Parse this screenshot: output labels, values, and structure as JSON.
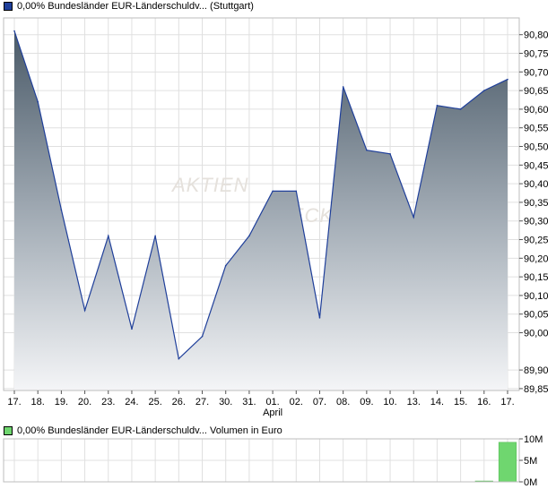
{
  "legend": {
    "price_label": "0,00% Bundesländer EUR-Länderschuldv... (Stuttgart)",
    "volume_label": "0,00% Bundesländer EUR-Länderschuldv... Volumen in Euro",
    "price_color": "#1f3f9a",
    "volume_color": "#6fd66f"
  },
  "watermark": {
    "line1": "AKTIEN",
    "line2": "CHECK"
  },
  "chart_data": [
    {
      "type": "area",
      "series": [
        {
          "name": "0,00% Bundesländer EUR-Länderschuldv... (Stuttgart)",
          "values": [
            90.81,
            90.62,
            90.33,
            90.06,
            90.26,
            90.01,
            90.26,
            89.93,
            89.99,
            90.18,
            90.26,
            90.38,
            90.38,
            90.04,
            90.66,
            90.49,
            90.48,
            90.31,
            90.61,
            90.6,
            90.65,
            90.68
          ]
        }
      ],
      "x_ticks": [
        "17.",
        "18.",
        "19.",
        "20.",
        "23.",
        "24.",
        "25.",
        "26.",
        "27.",
        "30.",
        "31.",
        "01.",
        "02.",
        "07.",
        "08.",
        "09.",
        "10.",
        "13.",
        "14.",
        "15.",
        "16.",
        "17."
      ],
      "x_sublabel": "April",
      "y_ticks": [
        "89,85",
        "89,90",
        "90,00",
        "90,05",
        "90,10",
        "90,15",
        "90,20",
        "90,25",
        "90,30",
        "90,35",
        "90,40",
        "90,45",
        "90,50",
        "90,55",
        "90,60",
        "90,65",
        "90,70",
        "90,75",
        "90,80"
      ],
      "ylim": [
        89.845,
        90.845
      ],
      "grid": true
    },
    {
      "type": "bar",
      "series": [
        {
          "name": "0,00% Bundesländer EUR-Länderschuldv... Volumen in Euro",
          "values": [
            0,
            0,
            0,
            0,
            0,
            0,
            0,
            0,
            0,
            0,
            0,
            0,
            0,
            0,
            0,
            0,
            0,
            0,
            0,
            0,
            0.2,
            9.2
          ]
        }
      ],
      "y_ticks": [
        "10M",
        "5M",
        "0M"
      ],
      "ylim": [
        0,
        10
      ],
      "grid": true
    }
  ]
}
